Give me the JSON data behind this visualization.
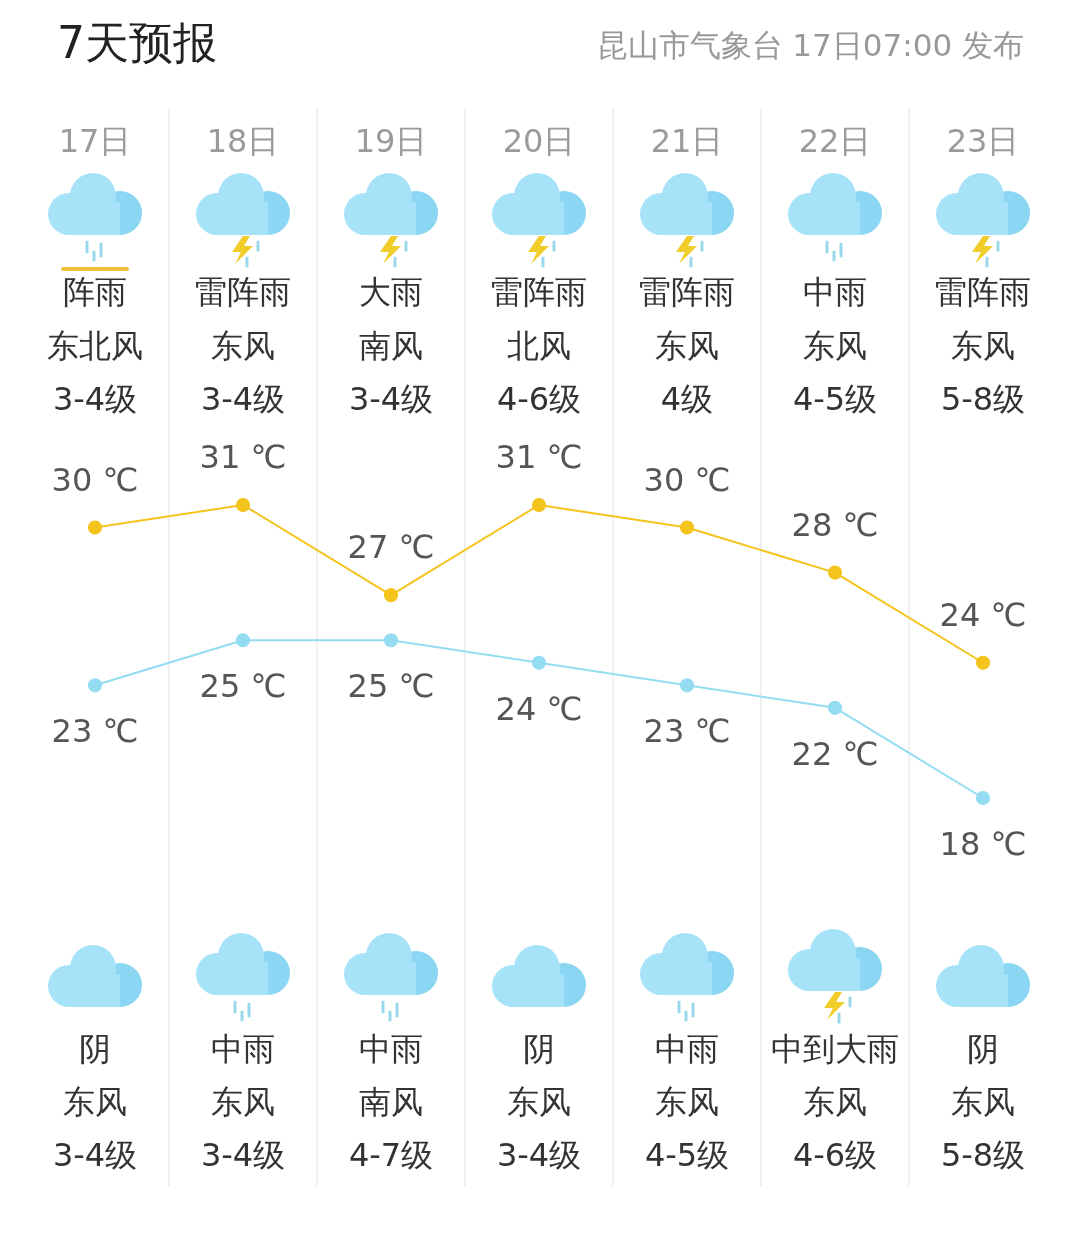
{
  "chart_data": {
    "type": "line",
    "title": "7天预报",
    "subtitle": "昆山市气象台 17日07:00 发布",
    "categories": [
      "17日",
      "18日",
      "19日",
      "20日",
      "21日",
      "22日",
      "23日"
    ],
    "series": [
      {
        "color": "#f4c31c",
        "values": [
          30,
          31,
          27,
          31,
          30,
          28,
          24
        ],
        "value_labels": [
          "30 ℃",
          "31 ℃",
          "27 ℃",
          "31 ℃",
          "30 ℃",
          "28 ℃",
          "24 ℃"
        ]
      },
      {
        "color": "#94dcf2",
        "values": [
          23,
          25,
          25,
          24,
          23,
          22,
          18
        ],
        "value_labels": [
          "23 ℃",
          "25 ℃",
          "25 ℃",
          "24 ℃",
          "23 ℃",
          "22 ℃",
          "18 ℃"
        ]
      }
    ],
    "annotations": [
      "阵雨",
      "雷阵雨",
      "大雨",
      "雷阵雨",
      "雷阵雨",
      "中雨",
      "雷阵雨",
      "东北风",
      "东风",
      "南风",
      "北风",
      "东风",
      "东风",
      "东风",
      "3-4级",
      "3-4级",
      "3-4级",
      "4-6级",
      "4级",
      "4-5级",
      "5-8级",
      "阴",
      "中雨",
      "中雨",
      "阴",
      "中雨",
      "中到大雨",
      "阴",
      "东风",
      "东风",
      "南风",
      "东风",
      "东风",
      "东风",
      "东风",
      "3-4级",
      "3-4级",
      "4-7级",
      "3-4级",
      "4-5级",
      "4-6级",
      "5-8级"
    ],
    "marker": "circle",
    "line_style": "solid",
    "grid": "x",
    "tick_labels": "x"
  }
}
